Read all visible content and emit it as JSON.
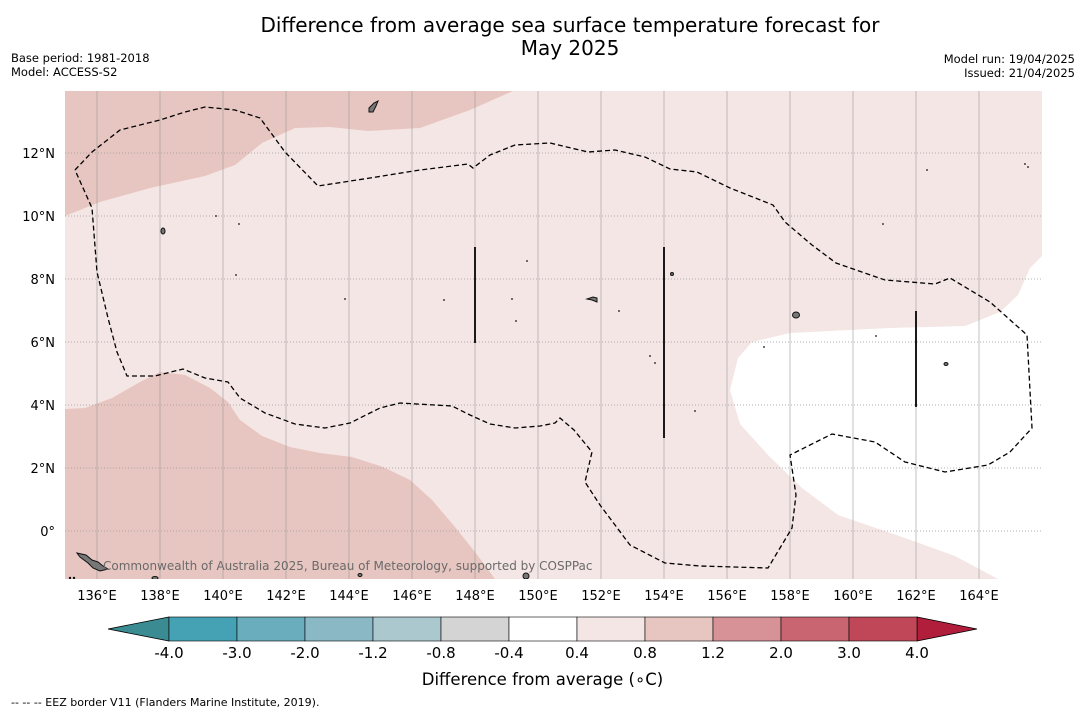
{
  "title_line1": "Difference from average sea surface temperature forecast for",
  "title_line2": "May 2025",
  "base_period": "Base period: 1981-2018",
  "model": "Model: ACCESS-S2",
  "model_run": "Model run: 19/04/2025",
  "issued": "Issued: 21/04/2025",
  "attribution": "Commonwealth of Australia 2025, Bureau of Meteorology, supported by COSPPac",
  "colorbar_label": "Difference from average (∘C)",
  "footnote": "--  --  -- EEZ border V11 (Flanders Marine Institute, 2019).",
  "lon_labels": [
    "136°E",
    "138°E",
    "140°E",
    "142°E",
    "144°E",
    "146°E",
    "148°E",
    "150°E",
    "152°E",
    "154°E",
    "156°E",
    "158°E",
    "160°E",
    "162°E",
    "164°E"
  ],
  "lat_labels": [
    "12°N",
    "10°N",
    "8°N",
    "6°N",
    "4°N",
    "2°N",
    "0°"
  ],
  "colorbar": {
    "ticks": [
      "-4.0",
      "-3.0",
      "-2.0",
      "-1.2",
      "-0.8",
      "-0.4",
      "0.4",
      "0.8",
      "1.2",
      "2.0",
      "3.0",
      "4.0"
    ],
    "colors": [
      "#44a2b4",
      "#6aadbd",
      "#8ab9c5",
      "#aac8cd",
      "#d4d4d4",
      "#ffffff",
      "#f4e6e4",
      "#e7c6c1",
      "#d79298",
      "#c96570",
      "#bf4757"
    ],
    "under_color": "#3a8c92",
    "over_color": "#b01e3c"
  },
  "colors": {
    "anomaly_04_08": "#f4e6e4",
    "anomaly_08_12": "#e7c6c1",
    "neutral": "#ffffff"
  }
}
